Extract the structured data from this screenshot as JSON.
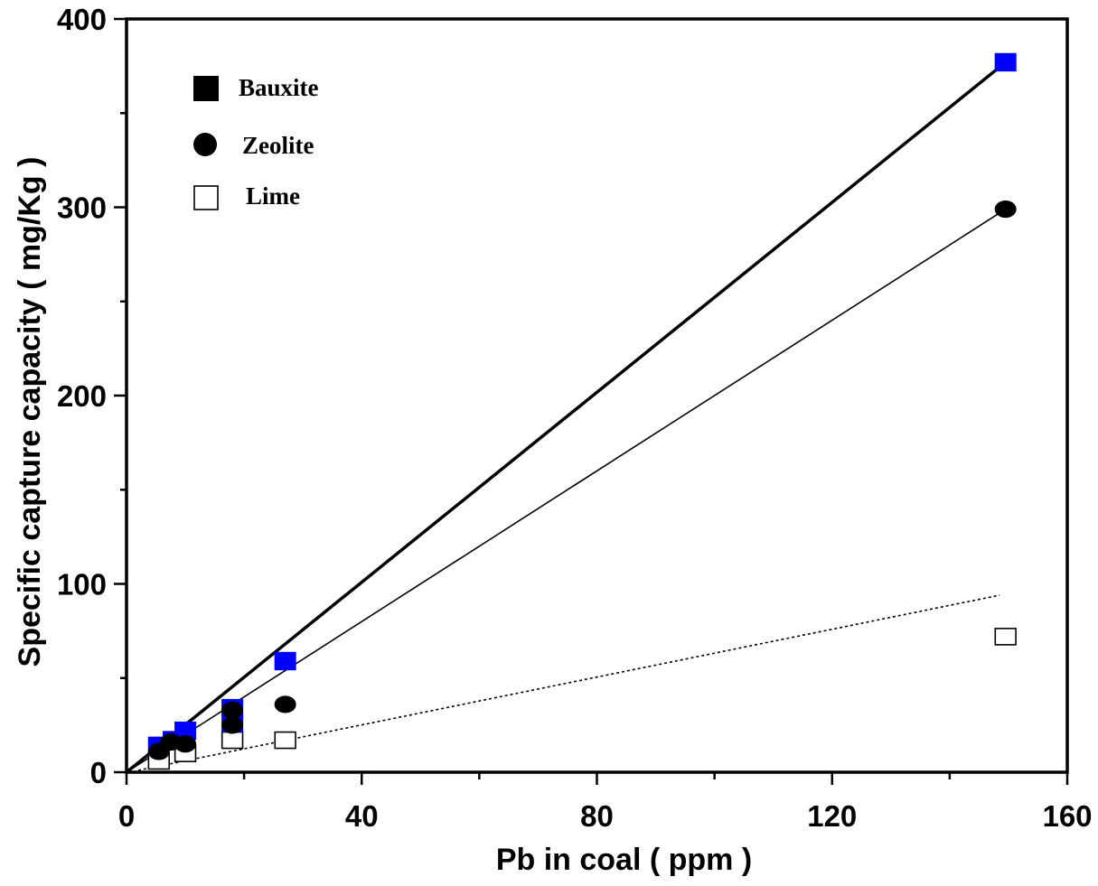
{
  "chart_data": {
    "type": "scatter",
    "xlabel": "Pb in coal ( ppm )",
    "ylabel": "Specific capture capacity ( mg/Kg )",
    "xlim": [
      0,
      160
    ],
    "ylim": [
      0,
      400
    ],
    "x_ticks": [
      "0",
      "40",
      "80",
      "120",
      "160"
    ],
    "y_ticks": [
      "0",
      "100",
      "200",
      "300",
      "400"
    ],
    "grid": false,
    "legend_position": "top-left",
    "series": [
      {
        "name": "Bauxite",
        "marker": "filled-square",
        "color": "#0000ff",
        "points": [
          {
            "x": 5.5,
            "y": 14
          },
          {
            "x": 8,
            "y": 17
          },
          {
            "x": 10,
            "y": 22
          },
          {
            "x": 18,
            "y": 26
          },
          {
            "x": 18,
            "y": 34
          },
          {
            "x": 27,
            "y": 59
          },
          {
            "x": 149.5,
            "y": 377
          }
        ],
        "trendline": {
          "x": [
            0,
            149.5
          ],
          "y": [
            0,
            377
          ],
          "style": "thick-solid"
        }
      },
      {
        "name": "Zeolite",
        "marker": "filled-circle",
        "color": "#000000",
        "points": [
          {
            "x": 5.5,
            "y": 11
          },
          {
            "x": 7.5,
            "y": 16
          },
          {
            "x": 10,
            "y": 15
          },
          {
            "x": 18,
            "y": 25
          },
          {
            "x": 18,
            "y": 33
          },
          {
            "x": 27,
            "y": 36
          },
          {
            "x": 149.5,
            "y": 299
          }
        ],
        "trendline": {
          "x": [
            0,
            149.5
          ],
          "y": [
            0,
            299
          ],
          "style": "thin-solid"
        }
      },
      {
        "name": "Lime",
        "marker": "open-square",
        "color": "#000000",
        "points": [
          {
            "x": 5.5,
            "y": 6
          },
          {
            "x": 10,
            "y": 10
          },
          {
            "x": 18,
            "y": 17
          },
          {
            "x": 27,
            "y": 17
          },
          {
            "x": 149.5,
            "y": 72
          }
        ],
        "trendline": {
          "x": [
            2,
            148.5
          ],
          "y": [
            1,
            94
          ],
          "style": "dotted"
        }
      }
    ]
  }
}
